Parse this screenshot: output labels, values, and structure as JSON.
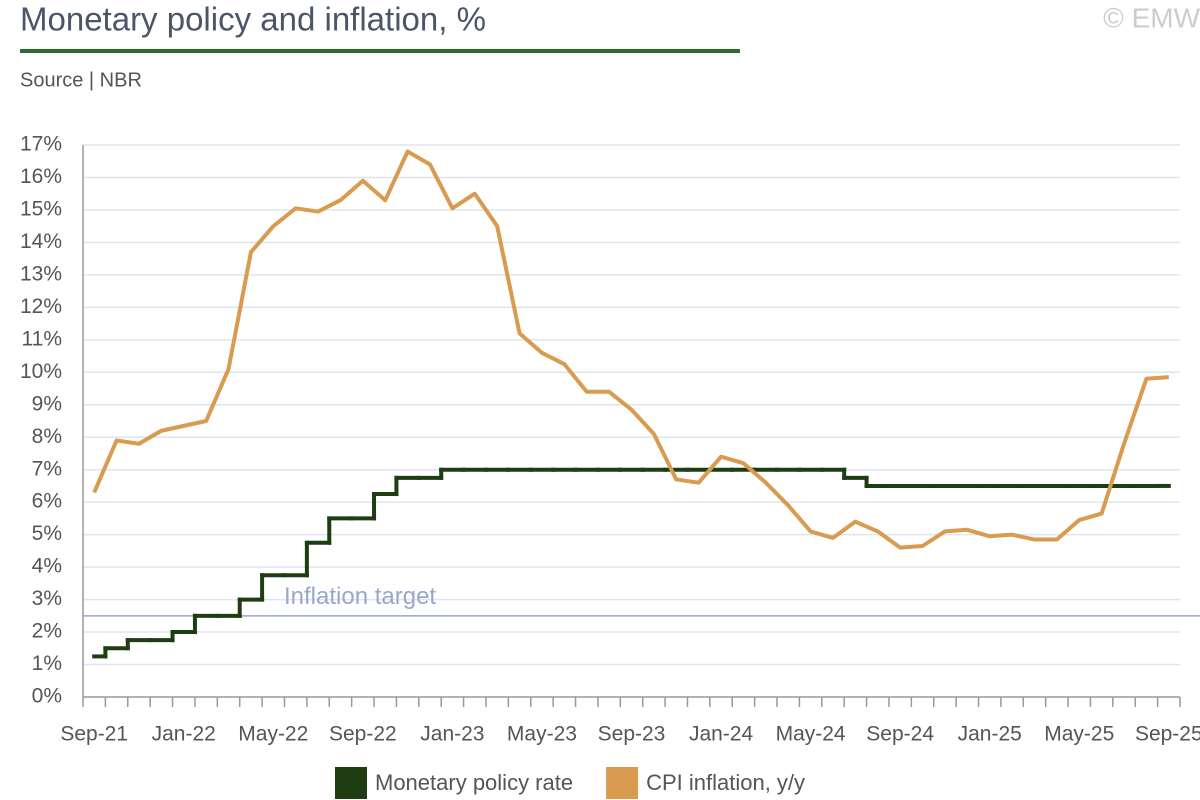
{
  "chart_data": {
    "type": "line",
    "title": "Monetary policy and inflation, %",
    "subtitle": "Source | NBR",
    "watermark": "© EMW",
    "categories": [
      "Sep-21",
      null,
      null,
      null,
      "Jan-22",
      null,
      null,
      null,
      "May-22",
      null,
      null,
      null,
      "Sep-22",
      null,
      null,
      null,
      "Jan-23",
      null,
      null,
      null,
      "May-23",
      null,
      null,
      null,
      "Sep-23",
      null,
      null,
      null,
      "Jan-24",
      null,
      null,
      null,
      "May-24",
      null,
      null,
      null,
      "Sep-24",
      null,
      null,
      null,
      "Jan-25",
      null,
      null,
      null,
      "May-25",
      null,
      null,
      null,
      "Sep-25"
    ],
    "series": [
      {
        "name": "Monetary policy rate",
        "color": "#1e3d12",
        "style": "step",
        "values": [
          1.25,
          1.5,
          1.75,
          1.75,
          2.0,
          2.5,
          2.5,
          3.0,
          3.75,
          3.75,
          4.75,
          5.5,
          5.5,
          6.25,
          6.75,
          6.75,
          7.0,
          7.0,
          7.0,
          7.0,
          7.0,
          7.0,
          7.0,
          7.0,
          7.0,
          7.0,
          7.0,
          7.0,
          7.0,
          7.0,
          7.0,
          7.0,
          7.0,
          7.0,
          6.75,
          6.5,
          6.5,
          6.5,
          6.5,
          6.5,
          6.5,
          6.5,
          6.5,
          6.5,
          6.5,
          6.5,
          6.5,
          6.5,
          6.5
        ]
      },
      {
        "name": "CPI inflation, y/y",
        "color": "#d89b4f",
        "style": "line",
        "values": [
          6.3,
          7.9,
          7.8,
          8.2,
          8.35,
          8.5,
          10.1,
          13.7,
          14.5,
          15.05,
          14.95,
          15.3,
          15.9,
          15.3,
          16.8,
          16.4,
          15.05,
          15.5,
          14.5,
          11.2,
          10.6,
          10.25,
          9.4,
          9.4,
          8.85,
          8.1,
          6.7,
          6.6,
          7.4,
          7.2,
          6.6,
          5.9,
          5.1,
          4.9,
          5.4,
          5.1,
          4.6,
          4.65,
          5.1,
          5.15,
          4.95,
          5.0,
          4.85,
          4.85,
          5.45,
          5.65,
          7.8,
          9.8,
          9.85
        ]
      }
    ],
    "inflation_target": {
      "label": "Inflation target",
      "value": 2.5,
      "color": "#9aa6cc"
    },
    "ylim": [
      0,
      17
    ],
    "yticks": [
      {
        "value": 0,
        "label": "0%"
      },
      {
        "value": 1,
        "label": "1%"
      },
      {
        "value": 2,
        "label": "2%"
      },
      {
        "value": 3,
        "label": "3%"
      },
      {
        "value": 4,
        "label": "4%"
      },
      {
        "value": 5,
        "label": "5%"
      },
      {
        "value": 6,
        "label": "6%"
      },
      {
        "value": 7,
        "label": "7%"
      },
      {
        "value": 8,
        "label": "8%"
      },
      {
        "value": 9,
        "label": "9%"
      },
      {
        "value": 10,
        "label": "10%"
      },
      {
        "value": 11,
        "label": "11%"
      },
      {
        "value": 12,
        "label": "12%"
      },
      {
        "value": 13,
        "label": "13%"
      },
      {
        "value": 14,
        "label": "14%"
      },
      {
        "value": 15,
        "label": "15%"
      },
      {
        "value": 16,
        "label": "16%"
      },
      {
        "value": 17,
        "label": "17%"
      }
    ],
    "grid": true,
    "legend": "bottom"
  }
}
